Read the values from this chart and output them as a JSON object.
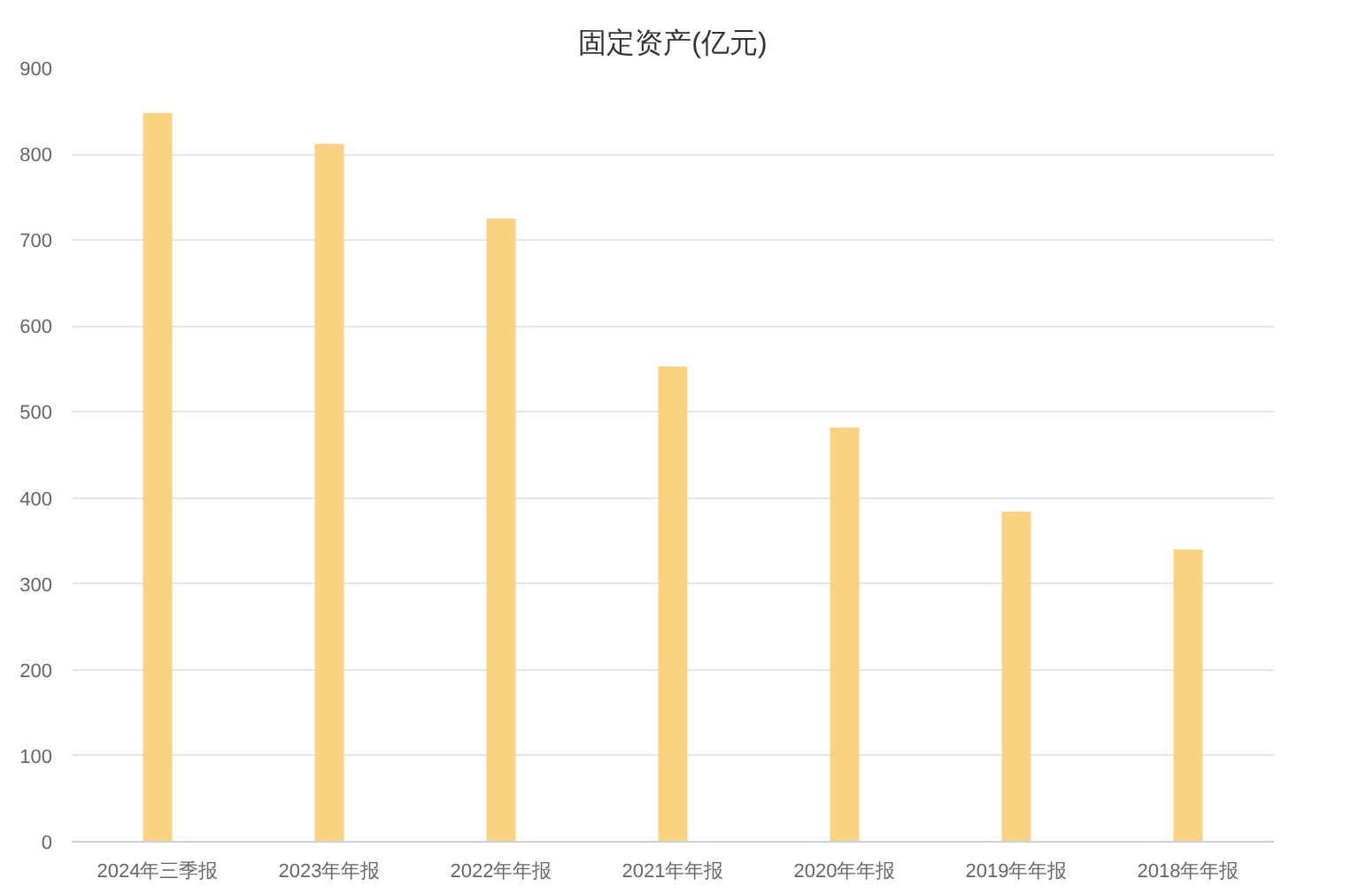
{
  "chart_data": {
    "type": "bar",
    "title": "固定资产(亿元)",
    "categories": [
      "2024年三季报",
      "2023年年报",
      "2022年年报",
      "2021年年报",
      "2020年年报",
      "2019年年报",
      "2018年年报"
    ],
    "values": [
      848,
      812,
      725,
      553,
      482,
      384,
      340
    ],
    "color": "#f9d381",
    "ylim": [
      0,
      900
    ],
    "yticks": [
      0,
      100,
      200,
      300,
      400,
      500,
      600,
      700,
      800,
      900
    ],
    "grid": "y"
  }
}
